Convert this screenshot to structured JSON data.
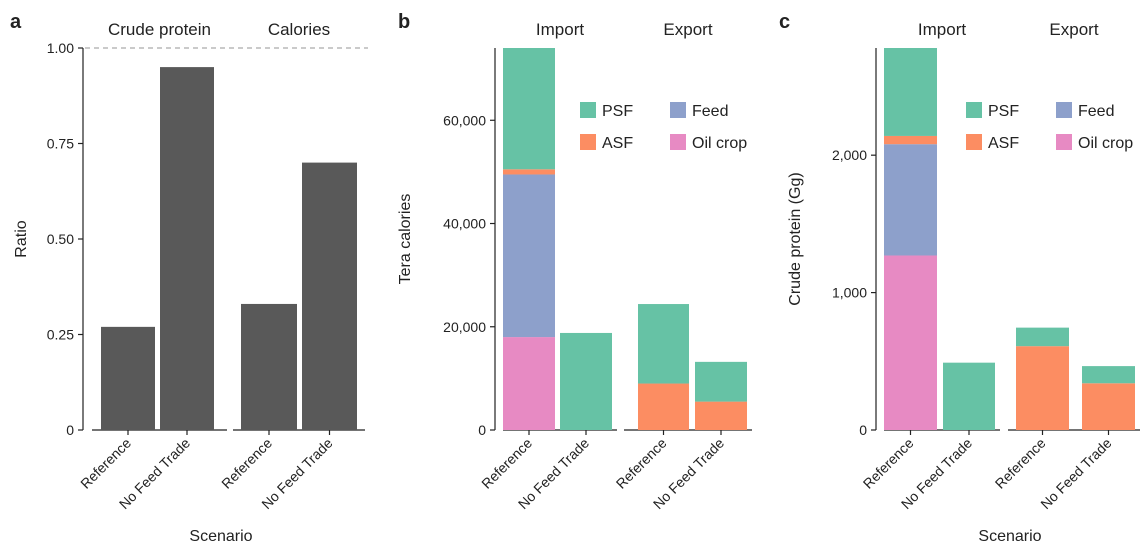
{
  "colors": {
    "bar_gray": "#595959",
    "PSF": "#66c2a5",
    "ASF": "#fc8d62",
    "Feed": "#8da0cb",
    "Oil crop": "#e78ac3",
    "dashed_ref": "#aaaaaa"
  },
  "chart_data": [
    {
      "panel_label": "a",
      "type": "bar",
      "facets": [
        "Crude protein",
        "Calories"
      ],
      "categories": [
        "Reference",
        "No Feed Trade"
      ],
      "series": [
        {
          "facet": "Crude protein",
          "values": [
            0.27,
            0.95
          ]
        },
        {
          "facet": "Calories",
          "values": [
            0.33,
            0.7
          ]
        }
      ],
      "reference_line": 1.0,
      "ylabel": "Ratio",
      "xlabel": "Scenario",
      "ylim": [
        0,
        1.0
      ],
      "yticks": [
        0,
        0.25,
        0.5,
        0.75,
        1.0
      ],
      "ytick_labels": [
        "0",
        "0.25",
        "0.50",
        "0.75",
        "1.00"
      ]
    },
    {
      "panel_label": "b",
      "type": "bar",
      "stacked": true,
      "facets": [
        "Import",
        "Export"
      ],
      "categories": [
        "Reference",
        "No Feed Trade"
      ],
      "stack_order": [
        "Oil crop",
        "Feed",
        "ASF",
        "PSF"
      ],
      "legend": [
        "PSF",
        "Feed",
        "ASF",
        "Oil crop"
      ],
      "legend_position": "top-right",
      "data": {
        "Import": {
          "Reference": {
            "Oil crop": 18000,
            "Feed": 31500,
            "ASF": 1000,
            "PSF": 23500
          },
          "No Feed Trade": {
            "Oil crop": 0,
            "Feed": 0,
            "ASF": 0,
            "PSF": 18800
          }
        },
        "Export": {
          "Reference": {
            "Oil crop": 0,
            "Feed": 0,
            "ASF": 9000,
            "PSF": 15400
          },
          "No Feed Trade": {
            "Oil crop": 0,
            "Feed": 0,
            "ASF": 5500,
            "PSF": 7700
          }
        }
      },
      "ylabel": "Tera calories",
      "xlabel": "",
      "ylim": [
        0,
        74000
      ],
      "yticks": [
        0,
        20000,
        40000,
        60000
      ],
      "ytick_labels": [
        "0",
        "20,000",
        "40,000",
        "60,000"
      ]
    },
    {
      "panel_label": "c",
      "type": "bar",
      "stacked": true,
      "facets": [
        "Import",
        "Export"
      ],
      "categories": [
        "Reference",
        "No Feed Trade"
      ],
      "stack_order": [
        "Oil crop",
        "Feed",
        "ASF",
        "PSF"
      ],
      "legend": [
        "PSF",
        "Feed",
        "ASF",
        "Oil crop"
      ],
      "legend_position": "top-right",
      "data": {
        "Import": {
          "Reference": {
            "Oil crop": 1270,
            "Feed": 810,
            "ASF": 60,
            "PSF": 640
          },
          "No Feed Trade": {
            "Oil crop": 0,
            "Feed": 0,
            "ASF": 0,
            "PSF": 490
          }
        },
        "Export": {
          "Reference": {
            "Oil crop": 0,
            "Feed": 0,
            "ASF": 610,
            "PSF": 135
          },
          "No Feed Trade": {
            "Oil crop": 0,
            "Feed": 0,
            "ASF": 340,
            "PSF": 125
          }
        }
      },
      "ylabel": "Crude protein (Gg)",
      "xlabel": "Scenario",
      "ylim": [
        0,
        2780
      ],
      "yticks": [
        0,
        1000,
        2000
      ],
      "ytick_labels": [
        "0",
        "1,000",
        "2,000"
      ]
    }
  ]
}
